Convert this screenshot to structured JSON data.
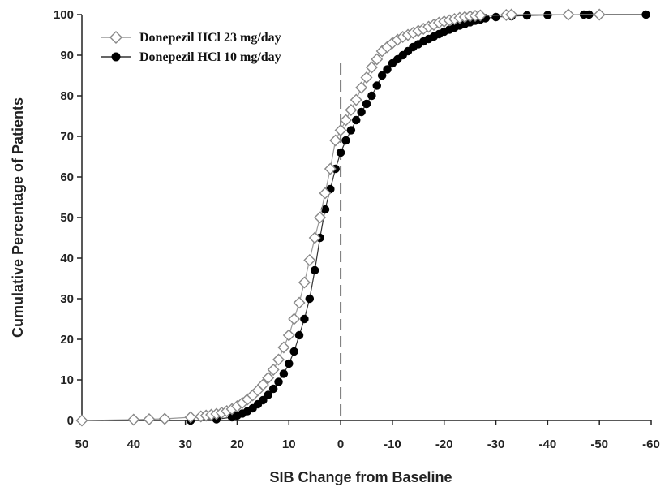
{
  "chart_data": {
    "type": "line",
    "title": "",
    "xlabel": "SIB Change from Baseline",
    "ylabel": "Cumulative Percentage of Patients",
    "xlim": [
      50,
      -60
    ],
    "ylim": [
      0,
      100
    ],
    "x_reversed": true,
    "x_ticks": [
      50,
      40,
      30,
      20,
      10,
      0,
      -10,
      -20,
      -30,
      -40,
      -50,
      -60
    ],
    "y_ticks": [
      0,
      10,
      20,
      30,
      40,
      50,
      60,
      70,
      80,
      90,
      100
    ],
    "reference_line_x": 0,
    "legend_position": "top-left",
    "grid": false,
    "series": [
      {
        "name": "Donepezil HCl 23 mg/day",
        "marker": "open-diamond",
        "color": "#888888",
        "x": [
          50,
          40,
          37,
          34,
          29,
          27,
          26,
          25,
          24,
          23,
          22,
          21,
          20,
          19,
          18,
          17,
          16,
          15,
          14,
          13,
          12,
          11,
          10,
          9,
          8,
          7,
          6,
          5,
          4,
          3,
          2,
          1,
          0,
          -1,
          -2,
          -3,
          -4,
          -5,
          -6,
          -7,
          -8,
          -9,
          -10,
          -11,
          -12,
          -13,
          -14,
          -15,
          -16,
          -17,
          -18,
          -19,
          -20,
          -21,
          -22,
          -23,
          -24,
          -25,
          -26,
          -27,
          -32,
          -33,
          -44,
          -50
        ],
        "y": [
          0,
          0.2,
          0.3,
          0.4,
          0.8,
          1.0,
          1.2,
          1.4,
          1.6,
          1.9,
          2.3,
          2.8,
          3.5,
          4.3,
          5.2,
          6.2,
          7.4,
          8.8,
          10.5,
          12.5,
          15,
          18,
          21,
          25,
          29,
          34,
          39.5,
          45,
          50,
          56,
          62,
          69,
          71.5,
          74,
          76.5,
          79,
          82,
          84.5,
          87,
          89,
          91,
          92,
          93,
          93.8,
          94.5,
          95,
          95.5,
          96,
          96.5,
          97,
          97.5,
          98,
          98.3,
          98.6,
          98.9,
          99.2,
          99.4,
          99.6,
          99.7,
          99.8,
          99.9,
          100,
          100,
          100
        ]
      },
      {
        "name": "Donepezil HCl 10 mg/day",
        "marker": "filled-circle",
        "color": "#000000",
        "x": [
          29,
          24,
          21,
          20,
          19,
          18,
          17,
          16,
          15,
          14,
          13,
          12,
          11,
          10,
          9,
          8,
          7,
          6,
          5,
          4,
          3,
          2,
          1,
          0,
          -1,
          -2,
          -3,
          -4,
          -5,
          -6,
          -7,
          -8,
          -9,
          -10,
          -11,
          -12,
          -13,
          -14,
          -15,
          -16,
          -17,
          -18,
          -19,
          -20,
          -21,
          -22,
          -23,
          -24,
          -25,
          -26,
          -27,
          -28,
          -30,
          -33,
          -36,
          -40,
          -47,
          -48,
          -59
        ],
        "y": [
          0,
          0.3,
          0.8,
          1.2,
          1.7,
          2.3,
          3.0,
          4.0,
          5.0,
          6.3,
          7.8,
          9.5,
          11.5,
          14,
          17,
          21,
          25,
          30,
          37,
          45,
          52,
          57,
          62,
          66,
          69,
          71.5,
          74,
          76,
          78,
          80,
          82.5,
          85,
          86.5,
          88,
          89,
          90,
          91,
          92,
          92.7,
          93.4,
          94,
          94.6,
          95.2,
          95.8,
          96.3,
          96.8,
          97.3,
          97.7,
          98.1,
          98.5,
          98.8,
          99.1,
          99.4,
          99.6,
          99.8,
          99.9,
          100,
          100,
          100
        ]
      }
    ]
  }
}
